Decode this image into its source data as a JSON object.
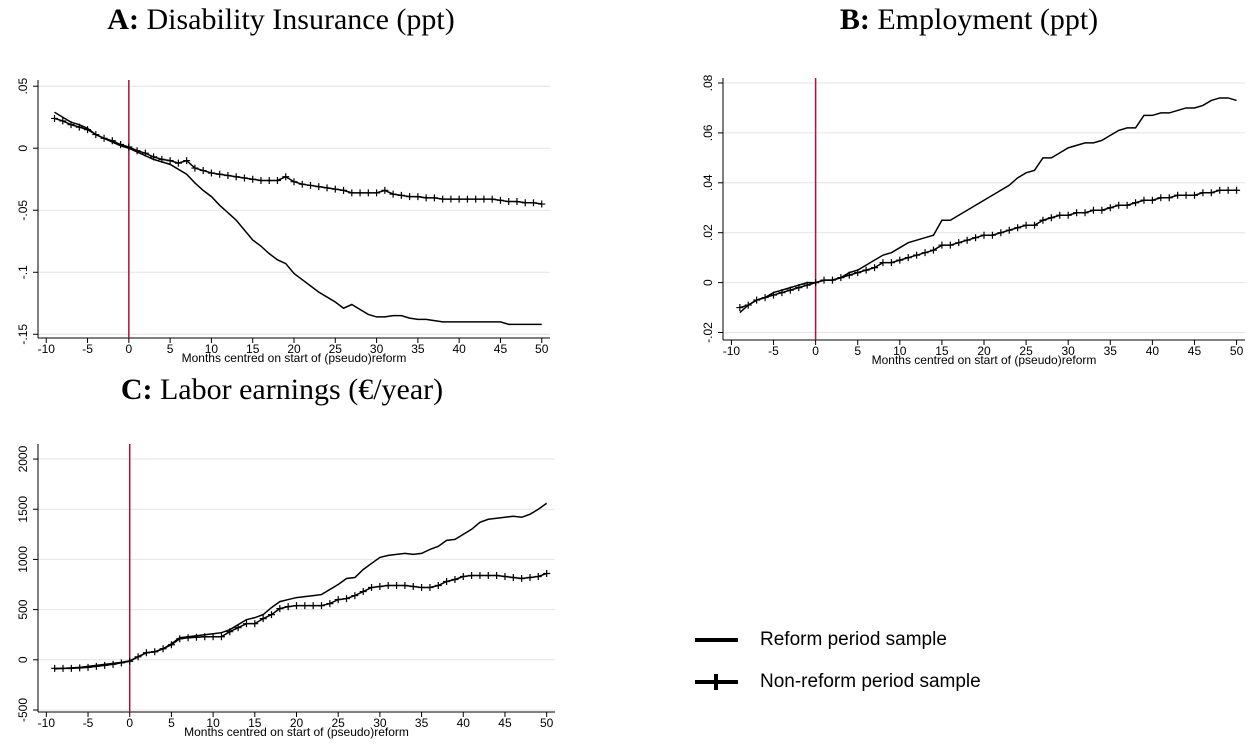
{
  "chart_data": [
    {
      "type": "line",
      "label": "A:",
      "title": "Disability Insurance (ppt)",
      "xlabel": "Months centred on start of (pseudo)reform",
      "x": [
        -9,
        -8,
        -7,
        -6,
        -5,
        -4,
        -3,
        -2,
        -1,
        0,
        1,
        2,
        3,
        4,
        5,
        6,
        7,
        8,
        9,
        10,
        11,
        12,
        13,
        14,
        15,
        16,
        17,
        18,
        19,
        20,
        21,
        22,
        23,
        24,
        25,
        26,
        27,
        28,
        29,
        30,
        31,
        32,
        33,
        34,
        35,
        36,
        37,
        38,
        39,
        40,
        41,
        42,
        43,
        44,
        45,
        46,
        47,
        48,
        49,
        50
      ],
      "series": [
        {
          "name": "Reform period sample",
          "color": "#000000",
          "marker": "none",
          "values": [
            0.029,
            0.025,
            0.021,
            0.019,
            0.016,
            0.011,
            0.008,
            0.005,
            0.002,
            0,
            -0.003,
            -0.006,
            -0.009,
            -0.011,
            -0.013,
            -0.017,
            -0.021,
            -0.028,
            -0.034,
            -0.039,
            -0.046,
            -0.052,
            -0.058,
            -0.066,
            -0.074,
            -0.079,
            -0.085,
            -0.09,
            -0.093,
            -0.101,
            -0.106,
            -0.111,
            -0.116,
            -0.12,
            -0.124,
            -0.129,
            -0.126,
            -0.13,
            -0.134,
            -0.136,
            -0.136,
            -0.135,
            -0.135,
            -0.137,
            -0.138,
            -0.138,
            -0.139,
            -0.14,
            -0.14,
            -0.14,
            -0.14,
            -0.14,
            -0.14,
            -0.14,
            -0.14,
            -0.142,
            -0.142,
            -0.142,
            -0.142,
            -0.142
          ]
        },
        {
          "name": "Non-reform period sample",
          "color": "#000000",
          "marker": "plus",
          "values": [
            0.024,
            0.022,
            0.019,
            0.017,
            0.015,
            0.011,
            0.008,
            0.006,
            0.003,
            0.001,
            -0.002,
            -0.004,
            -0.007,
            -0.009,
            -0.01,
            -0.012,
            -0.01,
            -0.016,
            -0.018,
            -0.02,
            -0.021,
            -0.022,
            -0.023,
            -0.024,
            -0.025,
            -0.026,
            -0.026,
            -0.026,
            -0.023,
            -0.027,
            -0.029,
            -0.03,
            -0.031,
            -0.032,
            -0.033,
            -0.034,
            -0.036,
            -0.036,
            -0.036,
            -0.036,
            -0.034,
            -0.037,
            -0.038,
            -0.039,
            -0.039,
            -0.04,
            -0.04,
            -0.041,
            -0.041,
            -0.041,
            -0.041,
            -0.041,
            -0.041,
            -0.041,
            -0.042,
            -0.043,
            -0.043,
            -0.044,
            -0.044,
            -0.045
          ]
        }
      ],
      "xlim": [
        -11,
        51
      ],
      "xticks": [
        -10,
        -5,
        0,
        5,
        10,
        15,
        20,
        25,
        30,
        35,
        40,
        45,
        50
      ],
      "ylim": [
        -0.153,
        0.055
      ],
      "yticks": [
        {
          "value": 0.05,
          "label": ".05"
        },
        0,
        {
          "value": -0.05,
          "label": "-.05"
        },
        {
          "value": -0.1,
          "label": "-.1"
        },
        {
          "value": -0.15,
          "label": "-.15"
        }
      ],
      "grid": true,
      "vline": 0,
      "vline_color": "#b01040"
    },
    {
      "type": "line",
      "label": "B:",
      "title": "Employment (ppt)",
      "xlabel": "Months centred on start of (pseudo)reform",
      "x": [
        -9,
        -8,
        -7,
        -6,
        -5,
        -4,
        -3,
        -2,
        -1,
        0,
        1,
        2,
        3,
        4,
        5,
        6,
        7,
        8,
        9,
        10,
        11,
        12,
        13,
        14,
        15,
        16,
        17,
        18,
        19,
        20,
        21,
        22,
        23,
        24,
        25,
        26,
        27,
        28,
        29,
        30,
        31,
        32,
        33,
        34,
        35,
        36,
        37,
        38,
        39,
        40,
        41,
        42,
        43,
        44,
        45,
        46,
        47,
        48,
        49,
        50
      ],
      "series": [
        {
          "name": "Reform period sample",
          "color": "#000000",
          "marker": "none",
          "values": [
            -0.012,
            -0.009,
            -0.007,
            -0.006,
            -0.004,
            -0.003,
            -0.002,
            -0.001,
            0,
            0,
            0.001,
            0.001,
            0.002,
            0.004,
            0.005,
            0.007,
            0.009,
            0.011,
            0.012,
            0.014,
            0.016,
            0.017,
            0.018,
            0.019,
            0.025,
            0.025,
            0.027,
            0.029,
            0.031,
            0.033,
            0.035,
            0.037,
            0.039,
            0.042,
            0.044,
            0.045,
            0.05,
            0.05,
            0.052,
            0.054,
            0.055,
            0.056,
            0.056,
            0.057,
            0.059,
            0.061,
            0.062,
            0.062,
            0.067,
            0.067,
            0.068,
            0.068,
            0.069,
            0.07,
            0.07,
            0.071,
            0.073,
            0.074,
            0.074,
            0.073
          ]
        },
        {
          "name": "Non-reform period sample",
          "color": "#000000",
          "marker": "plus",
          "values": [
            -0.01,
            -0.009,
            -0.007,
            -0.006,
            -0.005,
            -0.004,
            -0.003,
            -0.002,
            -0.001,
            0,
            0.001,
            0.001,
            0.002,
            0.003,
            0.004,
            0.005,
            0.006,
            0.008,
            0.008,
            0.009,
            0.01,
            0.011,
            0.012,
            0.013,
            0.015,
            0.015,
            0.016,
            0.017,
            0.018,
            0.019,
            0.019,
            0.02,
            0.021,
            0.022,
            0.023,
            0.023,
            0.025,
            0.026,
            0.027,
            0.027,
            0.028,
            0.028,
            0.029,
            0.029,
            0.03,
            0.031,
            0.031,
            0.032,
            0.033,
            0.033,
            0.034,
            0.034,
            0.035,
            0.035,
            0.035,
            0.036,
            0.036,
            0.037,
            0.037,
            0.037
          ]
        }
      ],
      "xlim": [
        -11,
        51
      ],
      "xticks": [
        -10,
        -5,
        0,
        5,
        10,
        15,
        20,
        25,
        30,
        35,
        40,
        45,
        50
      ],
      "ylim": [
        -0.023,
        0.082
      ],
      "yticks": [
        {
          "value": 0.08,
          "label": ".08"
        },
        {
          "value": 0.06,
          "label": ".06"
        },
        {
          "value": 0.04,
          "label": ".04"
        },
        {
          "value": 0.02,
          "label": ".02"
        },
        0,
        {
          "value": -0.02,
          "label": "-.02"
        }
      ],
      "grid": true,
      "vline": 0,
      "vline_color": "#b01040"
    },
    {
      "type": "line",
      "label": "C:",
      "title": "Labor earnings (€/year)",
      "xlabel": "Months centred on start of (pseudo)reform",
      "x": [
        -9,
        -8,
        -7,
        -6,
        -5,
        -4,
        -3,
        -2,
        -1,
        0,
        1,
        2,
        3,
        4,
        5,
        6,
        7,
        8,
        9,
        10,
        11,
        12,
        13,
        14,
        15,
        16,
        17,
        18,
        19,
        20,
        21,
        22,
        23,
        24,
        25,
        26,
        27,
        28,
        29,
        30,
        31,
        32,
        33,
        34,
        35,
        36,
        37,
        38,
        39,
        40,
        41,
        42,
        43,
        44,
        45,
        46,
        47,
        48,
        49,
        50
      ],
      "series": [
        {
          "name": "Reform period sample",
          "color": "#000000",
          "marker": "none",
          "values": [
            -90,
            -85,
            -80,
            -75,
            -65,
            -55,
            -45,
            -35,
            -25,
            -10,
            30,
            70,
            80,
            110,
            160,
            220,
            230,
            240,
            250,
            260,
            270,
            300,
            350,
            400,
            420,
            450,
            520,
            580,
            600,
            620,
            630,
            640,
            650,
            700,
            750,
            810,
            820,
            900,
            960,
            1020,
            1040,
            1050,
            1060,
            1050,
            1060,
            1100,
            1130,
            1190,
            1200,
            1250,
            1300,
            1370,
            1400,
            1410,
            1420,
            1430,
            1420,
            1450,
            1500,
            1560
          ]
        },
        {
          "name": "Non-reform period sample",
          "color": "#000000",
          "marker": "plus",
          "values": [
            -85,
            -85,
            -85,
            -80,
            -75,
            -65,
            -55,
            -45,
            -30,
            -15,
            30,
            70,
            80,
            110,
            150,
            210,
            220,
            225,
            230,
            230,
            230,
            280,
            320,
            360,
            360,
            410,
            450,
            510,
            530,
            540,
            540,
            540,
            540,
            560,
            600,
            610,
            640,
            680,
            720,
            730,
            740,
            740,
            740,
            730,
            720,
            720,
            740,
            780,
            800,
            830,
            840,
            840,
            840,
            840,
            830,
            820,
            810,
            820,
            830,
            860
          ]
        }
      ],
      "xlim": [
        -11,
        51
      ],
      "xticks": [
        -10,
        -5,
        0,
        5,
        10,
        15,
        20,
        25,
        30,
        35,
        40,
        45,
        50
      ],
      "ylim": [
        -520,
        2150
      ],
      "yticks": [
        2000,
        1500,
        1000,
        500,
        0,
        -500
      ],
      "grid": true,
      "vline": 0,
      "vline_color": "#b01040"
    }
  ]
}
